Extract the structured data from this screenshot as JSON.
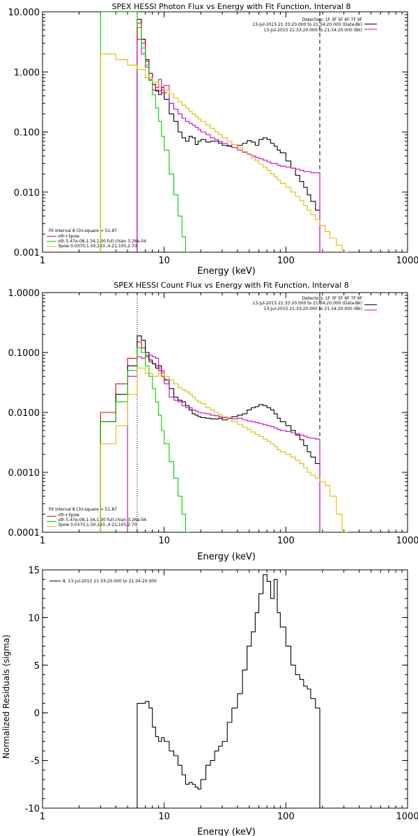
{
  "chart_data": [
    {
      "type": "line",
      "title": "SPEX HESSI Photon Flux vs Energy with Fit Function, Interval 8",
      "xlabel": "Energy (keV)",
      "ylabel": "",
      "xscale": "log",
      "yscale": "log",
      "xlim": [
        1,
        1000
      ],
      "ylim": [
        0.001,
        10
      ],
      "x_ticks": [
        "1",
        "10",
        "100",
        "1000"
      ],
      "y_ticks": [
        "0.001",
        "0.010",
        "0.100",
        "1.000",
        "10.000"
      ],
      "vlines": [
        {
          "x": 6,
          "style": "dotted"
        },
        {
          "x": 190,
          "style": "dashed"
        }
      ],
      "legend_topright": [
        {
          "text": "Detectors: 1F 3F 5F 6F 7F 9F",
          "color": null
        },
        {
          "text": "13-Jul-2015 21:33:20.000 to 21:34:20.000 (Data-Bk)",
          "color": "#000000"
        },
        {
          "text": "13-Jul-2015 21:33:20.000 to 21:34:20.000 (Bk)",
          "color": "#cc00cc"
        }
      ],
      "legend_bottomleft": [
        {
          "text": "Fit Interval 8   Chi-square = 51.87",
          "color": null
        },
        {
          "text": "vth+3pow",
          "color": "#dd0000"
        },
        {
          "text": "vth 5.47e-08,1.34,1.00  full chian 3.26e-04",
          "color": "#00cc00"
        },
        {
          "text": "3pow 0.0370,1.50,143.,4.21,105,2.70",
          "color": "#ddbb00"
        }
      ],
      "series": [
        {
          "color": "#000000",
          "x": [
            6,
            6.5,
            7,
            7.5,
            8,
            8.5,
            9,
            9.5,
            10,
            11,
            12,
            13,
            14,
            15,
            16,
            17,
            18,
            19,
            20,
            22,
            24,
            26,
            28,
            30,
            33,
            36,
            40,
            44,
            48,
            52,
            56,
            60,
            65,
            70,
            75,
            80,
            85,
            90,
            100,
            110,
            120,
            130,
            140,
            150,
            160,
            175,
            190
          ],
          "y": [
            7.5,
            3.5,
            1.6,
            0.95,
            0.62,
            0.48,
            0.42,
            0.55,
            0.35,
            0.2,
            0.15,
            0.1,
            0.08,
            0.07,
            0.085,
            0.08,
            0.062,
            0.07,
            0.075,
            0.068,
            0.07,
            0.07,
            0.065,
            0.06,
            0.058,
            0.055,
            0.06,
            0.065,
            0.072,
            0.068,
            0.06,
            0.075,
            0.08,
            0.075,
            0.065,
            0.058,
            0.05,
            0.045,
            0.033,
            0.025,
            0.019,
            0.015,
            0.012,
            0.009,
            0.007,
            0.005,
            0.001
          ]
        },
        {
          "color": "#dd0000",
          "x": [
            6,
            6.5,
            7,
            7.5,
            8,
            8.5,
            9,
            9.5,
            10
          ],
          "y": [
            6.5,
            3.0,
            1.5,
            0.95,
            0.62,
            0.5,
            0.48,
            0.5,
            0.45
          ]
        },
        {
          "color": "#cc00cc",
          "x": [
            6,
            6.5,
            7,
            7.5,
            8,
            8.5,
            9,
            9.5,
            10,
            11,
            12,
            13,
            14,
            15,
            16,
            17,
            18,
            19,
            20,
            22,
            24,
            26,
            28,
            30,
            33,
            36,
            40,
            44,
            48,
            52,
            56,
            60,
            65,
            70,
            75,
            80,
            85,
            90,
            100,
            110,
            120,
            130,
            140,
            150,
            160,
            175,
            190
          ],
          "y": [
            3.5,
            2.0,
            1.2,
            0.75,
            0.5,
            0.55,
            0.75,
            0.45,
            0.6,
            0.3,
            0.24,
            0.2,
            0.17,
            0.15,
            0.14,
            0.13,
            0.12,
            0.11,
            0.1,
            0.09,
            0.08,
            0.075,
            0.07,
            0.065,
            0.06,
            0.055,
            0.05,
            0.046,
            0.043,
            0.04,
            0.038,
            0.036,
            0.034,
            0.032,
            0.03,
            0.03,
            0.028,
            0.027,
            0.026,
            0.025,
            0.024,
            0.023,
            0.022,
            0.022,
            0.021,
            0.021,
            0.001
          ]
        },
        {
          "color": "#00cc00",
          "x": [
            3,
            4,
            5,
            6,
            6.5,
            7,
            7.5,
            8,
            8.5,
            9,
            9.5,
            10,
            11,
            12,
            13,
            14,
            15
          ],
          "y": [
            10,
            10,
            10,
            5.5,
            2.5,
            1.3,
            0.72,
            0.42,
            0.25,
            0.15,
            0.085,
            0.05,
            0.02,
            0.009,
            0.004,
            0.0018,
            0.001
          ]
        },
        {
          "color": "#ddbb00",
          "x": [
            3,
            4,
            5,
            6,
            7,
            8,
            9,
            10,
            11,
            12,
            13,
            14,
            15,
            16,
            17,
            18,
            19,
            20,
            22,
            24,
            26,
            28,
            30,
            33,
            36,
            40,
            44,
            48,
            52,
            56,
            60,
            65,
            70,
            75,
            80,
            85,
            90,
            100,
            110,
            120,
            130,
            140,
            150,
            160,
            175,
            190,
            210,
            230,
            260,
            290
          ],
          "y": [
            2.0,
            1.6,
            1.3,
            1.1,
            0.8,
            0.68,
            0.58,
            0.5,
            0.43,
            0.37,
            0.32,
            0.28,
            0.25,
            0.22,
            0.2,
            0.18,
            0.165,
            0.15,
            0.13,
            0.115,
            0.1,
            0.09,
            0.08,
            0.07,
            0.062,
            0.055,
            0.048,
            0.042,
            0.037,
            0.033,
            0.029,
            0.026,
            0.023,
            0.02,
            0.018,
            0.016,
            0.014,
            0.012,
            0.01,
            0.0085,
            0.0072,
            0.006,
            0.005,
            0.0042,
            0.0035,
            0.0028,
            0.0022,
            0.0017,
            0.0013,
            0.001
          ]
        }
      ]
    },
    {
      "type": "line",
      "title": "SPEX HESSI Count Flux vs Energy with Fit Function, Interval 8",
      "xlabel": "Energy (keV)",
      "ylabel": "",
      "xscale": "log",
      "yscale": "log",
      "xlim": [
        1,
        1000
      ],
      "ylim": [
        0.0001,
        1
      ],
      "x_ticks": [
        "1",
        "10",
        "100",
        "1000"
      ],
      "y_ticks": [
        "0.0001",
        "0.0010",
        "0.0100",
        "0.1000",
        "1.0000"
      ],
      "vlines": [
        {
          "x": 6,
          "style": "dotted"
        },
        {
          "x": 190,
          "style": "dashed"
        }
      ],
      "legend_topright": [
        {
          "text": "Detectors: 1F 3F 5F 6F 7F 9F",
          "color": null
        },
        {
          "text": "13-Jul-2015 21:33:20.000 to 21:34:20.000 (Data-Bk)",
          "color": "#000000"
        },
        {
          "text": "13-Jul-2015 21:33:20.000 to 21:34:20.000 (Bk)",
          "color": "#cc00cc"
        }
      ],
      "legend_bottomleft": [
        {
          "text": "Fit Interval 8   Chi-square = 51.87",
          "color": null
        },
        {
          "text": "vth+3pow",
          "color": "#dd0000"
        },
        {
          "text": "vth 5.47e-08,1.34,1.00  full chian 3.26e-04",
          "color": "#00cc00"
        },
        {
          "text": "3pow 0.0370,1.50,143.,4.21,105,2.70",
          "color": "#ddbb00"
        }
      ],
      "series": [
        {
          "color": "#dd0000",
          "x": [
            3,
            4,
            5,
            6,
            6.5,
            7,
            7.5,
            8,
            8.5,
            9,
            9.5,
            10
          ],
          "y": [
            0.01,
            0.03,
            0.08,
            0.15,
            0.12,
            0.085,
            0.07,
            0.065,
            0.06,
            0.05,
            0.04,
            0.035
          ]
        },
        {
          "color": "#000000",
          "x": [
            3,
            4,
            5,
            6,
            6.5,
            7,
            7.5,
            8,
            8.5,
            9,
            9.5,
            10,
            11,
            12,
            13,
            14,
            15,
            16,
            17,
            18,
            19,
            20,
            22,
            24,
            26,
            28,
            30,
            33,
            36,
            40,
            44,
            48,
            52,
            56,
            60,
            65,
            70,
            75,
            80,
            85,
            90,
            100,
            110,
            120,
            130,
            140,
            150,
            160,
            175,
            190
          ],
          "y": [
            0.007,
            0.02,
            0.06,
            0.19,
            0.16,
            0.1,
            0.075,
            0.065,
            0.055,
            0.06,
            0.045,
            0.035,
            0.025,
            0.018,
            0.016,
            0.015,
            0.013,
            0.011,
            0.0095,
            0.009,
            0.0085,
            0.0082,
            0.008,
            0.0078,
            0.0078,
            0.008,
            0.0075,
            0.008,
            0.0085,
            0.009,
            0.0095,
            0.011,
            0.012,
            0.0125,
            0.0135,
            0.013,
            0.012,
            0.011,
            0.0095,
            0.008,
            0.007,
            0.006,
            0.005,
            0.0042,
            0.0035,
            0.0028,
            0.0022,
            0.0018,
            0.0014,
            0.0001
          ]
        },
        {
          "color": "#cc00cc",
          "x": [
            5,
            6,
            6.5,
            7,
            7.5,
            8,
            8.5,
            9,
            9.5,
            10,
            11,
            12,
            13,
            14,
            15,
            16,
            17,
            18,
            19,
            20,
            22,
            24,
            26,
            28,
            30,
            33,
            36,
            40,
            44,
            48,
            52,
            56,
            60,
            65,
            70,
            75,
            80,
            85,
            90,
            100,
            110,
            120,
            130,
            140,
            150,
            160,
            175,
            190
          ],
          "y": [
            0.04,
            0.085,
            0.08,
            0.09,
            0.09,
            0.085,
            0.08,
            0.055,
            0.05,
            0.03,
            0.018,
            0.016,
            0.015,
            0.013,
            0.012,
            0.012,
            0.011,
            0.0105,
            0.01,
            0.0098,
            0.0095,
            0.009,
            0.0088,
            0.0085,
            0.0082,
            0.008,
            0.0078,
            0.008,
            0.0075,
            0.0072,
            0.007,
            0.0068,
            0.0065,
            0.0062,
            0.006,
            0.0058,
            0.0055,
            0.0052,
            0.005,
            0.0048,
            0.0046,
            0.0044,
            0.0042,
            0.004,
            0.0038,
            0.0037,
            0.0036,
            0.0001
          ]
        },
        {
          "color": "#00cc00",
          "x": [
            3,
            4,
            5,
            6,
            6.5,
            7,
            7.5,
            8,
            8.5,
            9,
            9.5,
            10,
            11,
            12,
            13,
            14,
            15
          ],
          "y": [
            0.007,
            0.015,
            0.05,
            0.12,
            0.1,
            0.06,
            0.04,
            0.025,
            0.015,
            0.009,
            0.005,
            0.003,
            0.0015,
            0.0008,
            0.0004,
            0.0002,
            0.0001
          ]
        },
        {
          "color": "#ddbb00",
          "x": [
            3,
            4,
            5,
            6,
            7,
            8,
            9,
            10,
            11,
            12,
            13,
            14,
            15,
            16,
            17,
            18,
            19,
            20,
            22,
            24,
            26,
            28,
            30,
            33,
            36,
            40,
            44,
            48,
            52,
            56,
            60,
            65,
            70,
            75,
            80,
            85,
            90,
            100,
            110,
            120,
            130,
            140,
            150,
            160,
            175,
            190,
            210,
            230,
            260,
            290
          ],
          "y": [
            0.003,
            0.006,
            0.02,
            0.055,
            0.045,
            0.04,
            0.045,
            0.04,
            0.035,
            0.03,
            0.026,
            0.024,
            0.022,
            0.02,
            0.018,
            0.016,
            0.015,
            0.014,
            0.012,
            0.011,
            0.01,
            0.0092,
            0.0085,
            0.0078,
            0.007,
            0.0063,
            0.0057,
            0.0052,
            0.0047,
            0.0043,
            0.004,
            0.0036,
            0.0033,
            0.003,
            0.0027,
            0.0024,
            0.0022,
            0.002,
            0.0018,
            0.0016,
            0.0014,
            0.0012,
            0.001,
            0.0009,
            0.0008,
            0.0007,
            0.0006,
            0.0004,
            0.0002,
            0.0001
          ]
        }
      ]
    },
    {
      "type": "line",
      "title": "",
      "xlabel": "Energy (keV)",
      "ylabel": "Normalized Residuals (sigma)",
      "xscale": "log",
      "yscale": "linear",
      "xlim": [
        1,
        1000
      ],
      "ylim": [
        -10,
        15
      ],
      "x_ticks": [
        "1",
        "10",
        "100",
        "1000"
      ],
      "y_ticks": [
        "-10",
        "-5",
        "0",
        "5",
        "10",
        "15"
      ],
      "legend": "8, 13-Jul-2015 21:33:20.000 to 21:34:20.000",
      "series": [
        {
          "color": "#000000",
          "x": [
            6,
            6.5,
            7,
            7.5,
            8,
            8.5,
            9,
            9.5,
            10,
            11,
            12,
            13,
            14,
            15,
            16,
            17,
            18,
            19,
            20,
            22,
            24,
            26,
            28,
            30,
            33,
            36,
            40,
            44,
            48,
            52,
            56,
            60,
            65,
            70,
            75,
            80,
            85,
            90,
            100,
            110,
            120,
            130,
            140,
            150,
            160,
            175,
            190
          ],
          "y": [
            1.0,
            1.0,
            1.2,
            0.5,
            -1.5,
            -2.5,
            -3.0,
            -2.6,
            -3.0,
            -4.0,
            -4.5,
            -5.5,
            -6.5,
            -7.5,
            -7.3,
            -7.5,
            -7.8,
            -8.0,
            -7.0,
            -5.5,
            -5.0,
            -4.0,
            -3.5,
            -3.0,
            -1.0,
            0.5,
            2.0,
            4.5,
            7.0,
            8.5,
            10.5,
            12.5,
            14.5,
            13.8,
            12.0,
            14.0,
            10.5,
            9.0,
            7.0,
            5.0,
            4.0,
            3.5,
            2.8,
            2.5,
            1.5,
            0.5,
            -10.0
          ]
        }
      ]
    }
  ]
}
